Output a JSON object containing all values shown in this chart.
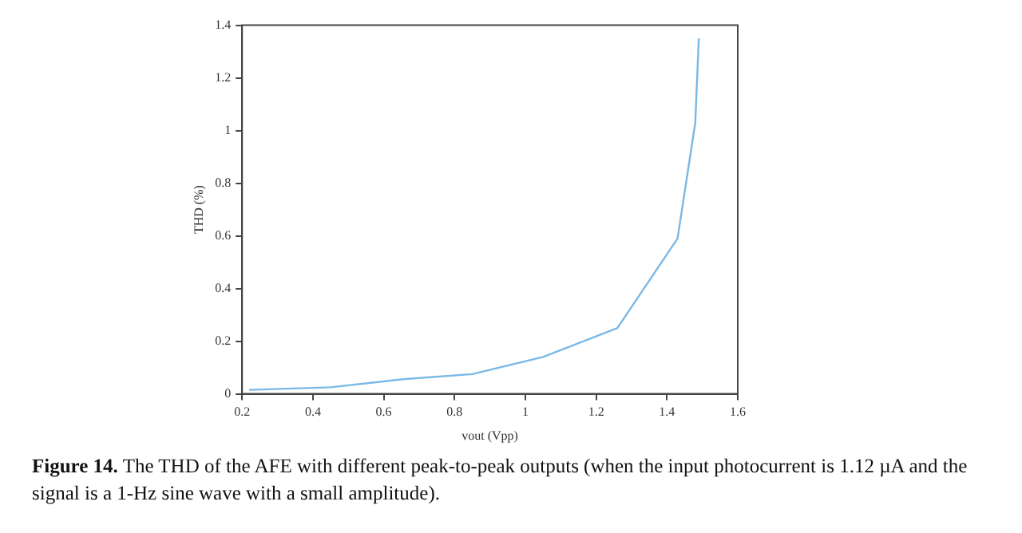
{
  "chart_data": {
    "type": "line",
    "xlabel": "vout (Vpp)",
    "ylabel": "THD (%)",
    "x": [
      0.22,
      0.45,
      0.65,
      0.85,
      1.05,
      1.26,
      1.43,
      1.48,
      1.49
    ],
    "series": [
      {
        "color": "#7ab8e6",
        "values": [
          0.015,
          0.025,
          0.055,
          0.075,
          0.14,
          0.25,
          0.59,
          1.03,
          1.35
        ]
      }
    ],
    "xlim": [
      0.2,
      1.6
    ],
    "xticks": [
      0.2,
      0.4,
      0.6,
      0.8,
      1,
      1.2,
      1.4,
      1.6
    ],
    "ylim": [
      0,
      1.4
    ],
    "yticks": [
      0,
      0.2,
      0.4,
      0.6,
      0.8,
      1,
      1.2,
      1.4
    ],
    "grid": false,
    "legend": false,
    "marker": "none",
    "line_style": "solid",
    "annotations": [
      "Figure 14.",
      "The THD of the AFE with different peak-to-peak outputs (when the input photocurrent is 1.12 µA and the signal is a 1-Hz sine wave with a small amplitude)."
    ]
  }
}
